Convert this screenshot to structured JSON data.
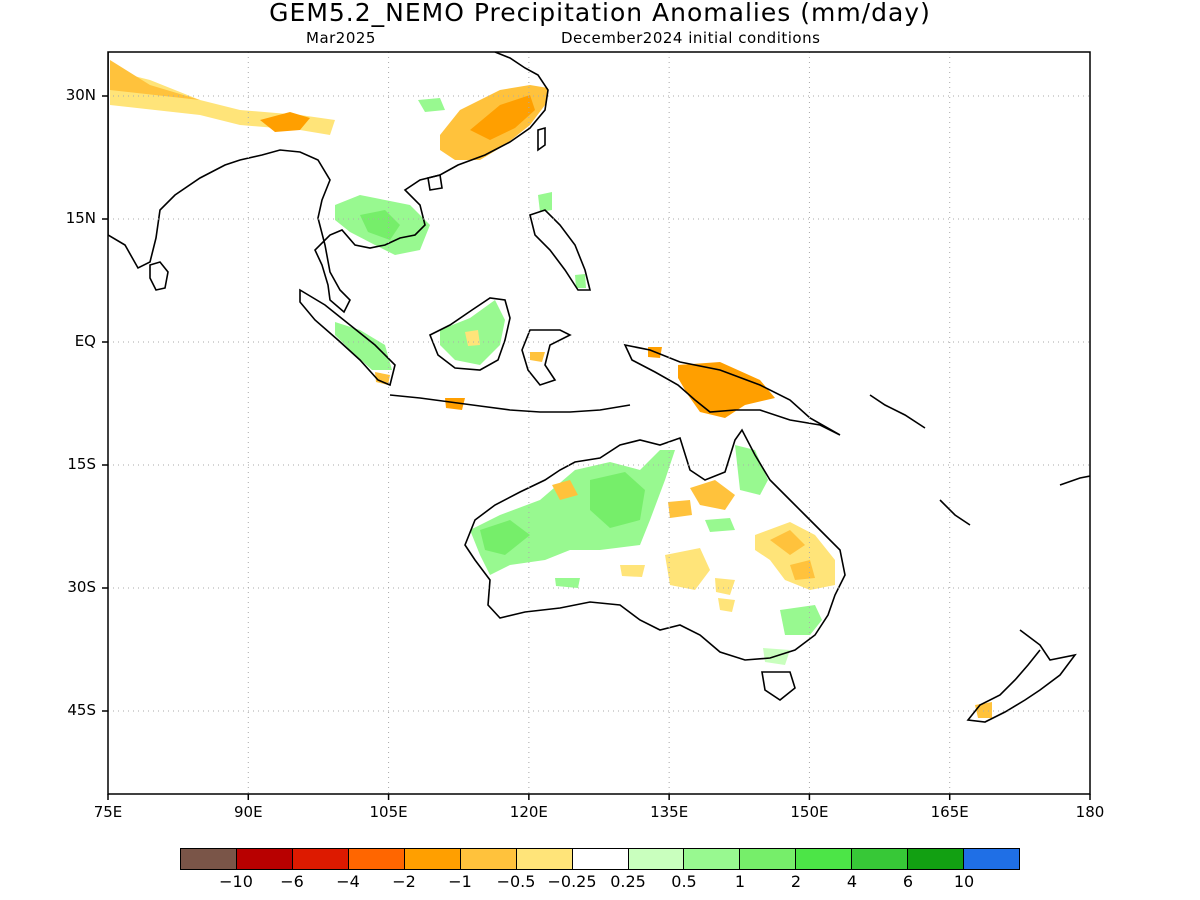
{
  "title": "GEM5.2_NEMO Precipitation Anomalies (mm/day)",
  "subtitle_left": "Mar2025",
  "subtitle_right": "December2024 initial conditions",
  "map": {
    "lon_range": [
      75,
      180
    ],
    "lat_range": [
      -55,
      35
    ],
    "lat_labels": [
      "30N",
      "15N",
      "EQ",
      "15S",
      "30S",
      "45S"
    ],
    "lon_labels": [
      "75E",
      "90E",
      "105E",
      "120E",
      "135E",
      "150E",
      "165E",
      "180"
    ],
    "grid": "dotted"
  },
  "colorbar": {
    "colors": [
      "#7a5548",
      "#b80000",
      "#dd1a00",
      "#ff6600",
      "#ff9f00",
      "#ffc23c",
      "#ffe479",
      "#ffffff",
      "#c9ffbe",
      "#98f990",
      "#76ee6a",
      "#4ce547",
      "#37c837",
      "#12a012",
      "#1f6fe6"
    ],
    "labels": [
      "−10",
      "−6",
      "−4",
      "−2",
      "−1",
      "−0.5",
      "−0.25",
      "0.25",
      "0.5",
      "1",
      "2",
      "4",
      "6",
      "10"
    ]
  }
}
